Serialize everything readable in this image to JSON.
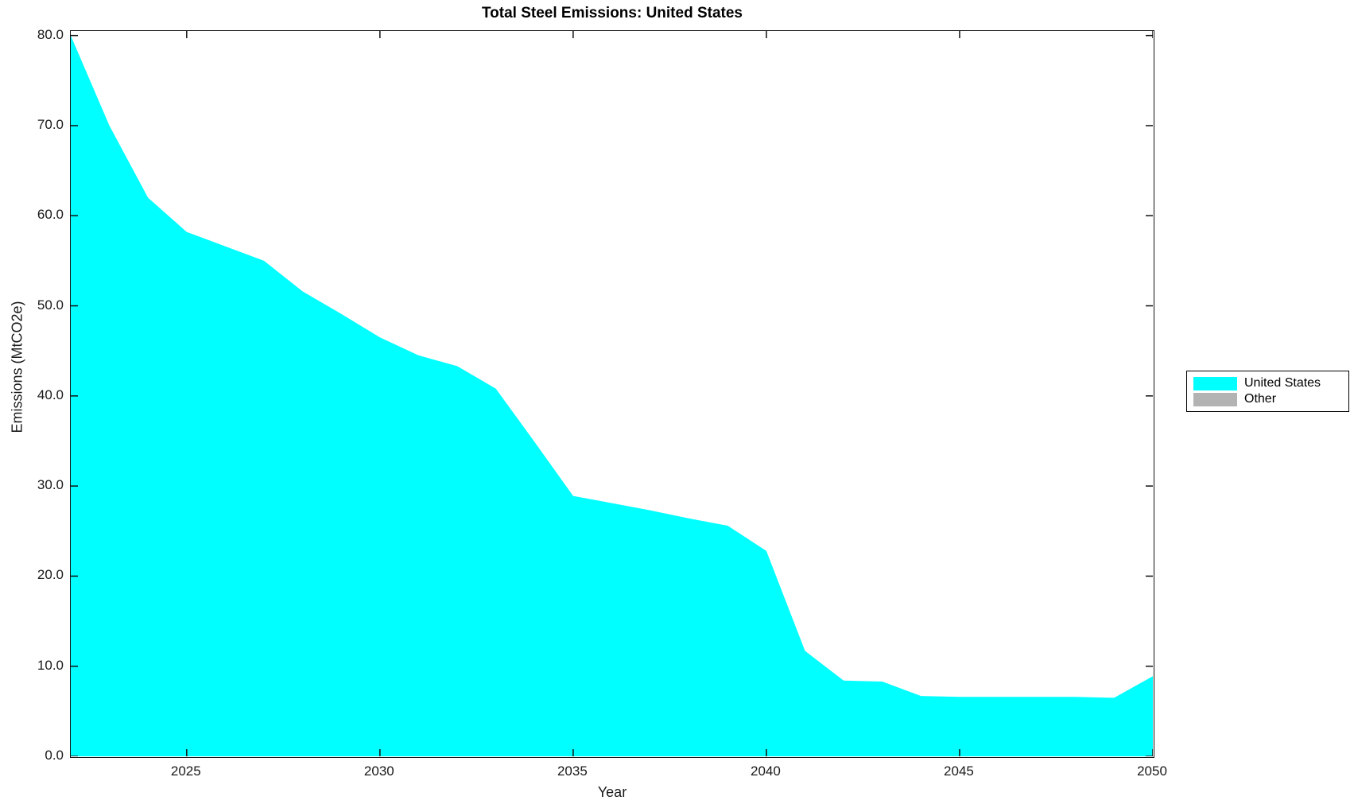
{
  "title": "Total Steel Emissions: United States",
  "chart_data": {
    "type": "area",
    "title": "Total Steel Emissions: United States",
    "xlabel": "Year",
    "ylabel": "Emissions (MtCO2e)",
    "x": [
      2022,
      2023,
      2024,
      2025,
      2026,
      2027,
      2028,
      2029,
      2030,
      2031,
      2032,
      2033,
      2034,
      2035,
      2036,
      2037,
      2038,
      2039,
      2040,
      2041,
      2042,
      2043,
      2044,
      2045,
      2046,
      2047,
      2048,
      2049,
      2050
    ],
    "series": [
      {
        "name": "United States",
        "color": "#00ffff",
        "values": [
          80.0,
          70.0,
          62.0,
          58.2,
          56.6,
          55.0,
          51.6,
          49.1,
          46.5,
          44.5,
          43.3,
          40.8,
          34.9,
          28.9,
          28.1,
          27.3,
          26.4,
          25.6,
          22.8,
          11.7,
          8.4,
          8.3,
          6.7,
          6.6,
          6.6,
          6.6,
          6.6,
          6.5,
          8.9
        ]
      }
    ],
    "legend": [
      {
        "label": "United States",
        "color": "#00ffff"
      },
      {
        "label": "Other",
        "color": "#b3b3b3"
      }
    ],
    "legend_position": "right-outside",
    "xlim": [
      2022,
      2050
    ],
    "ylim": [
      0,
      80.5
    ],
    "xticks": [
      2025,
      2030,
      2035,
      2040,
      2045,
      2050
    ],
    "xtick_labels": [
      "2025",
      "2030",
      "2035",
      "2040",
      "2045",
      "2050"
    ],
    "yticks": [
      0,
      10,
      20,
      30,
      40,
      50,
      60,
      70,
      80
    ],
    "ytick_labels": [
      "0.0",
      "10.0",
      "20.0",
      "30.0",
      "40.0",
      "50.0",
      "60.0",
      "70.0",
      "80.0"
    ],
    "grid": "off",
    "background": "#ffffff",
    "axis_color": "#111111"
  }
}
